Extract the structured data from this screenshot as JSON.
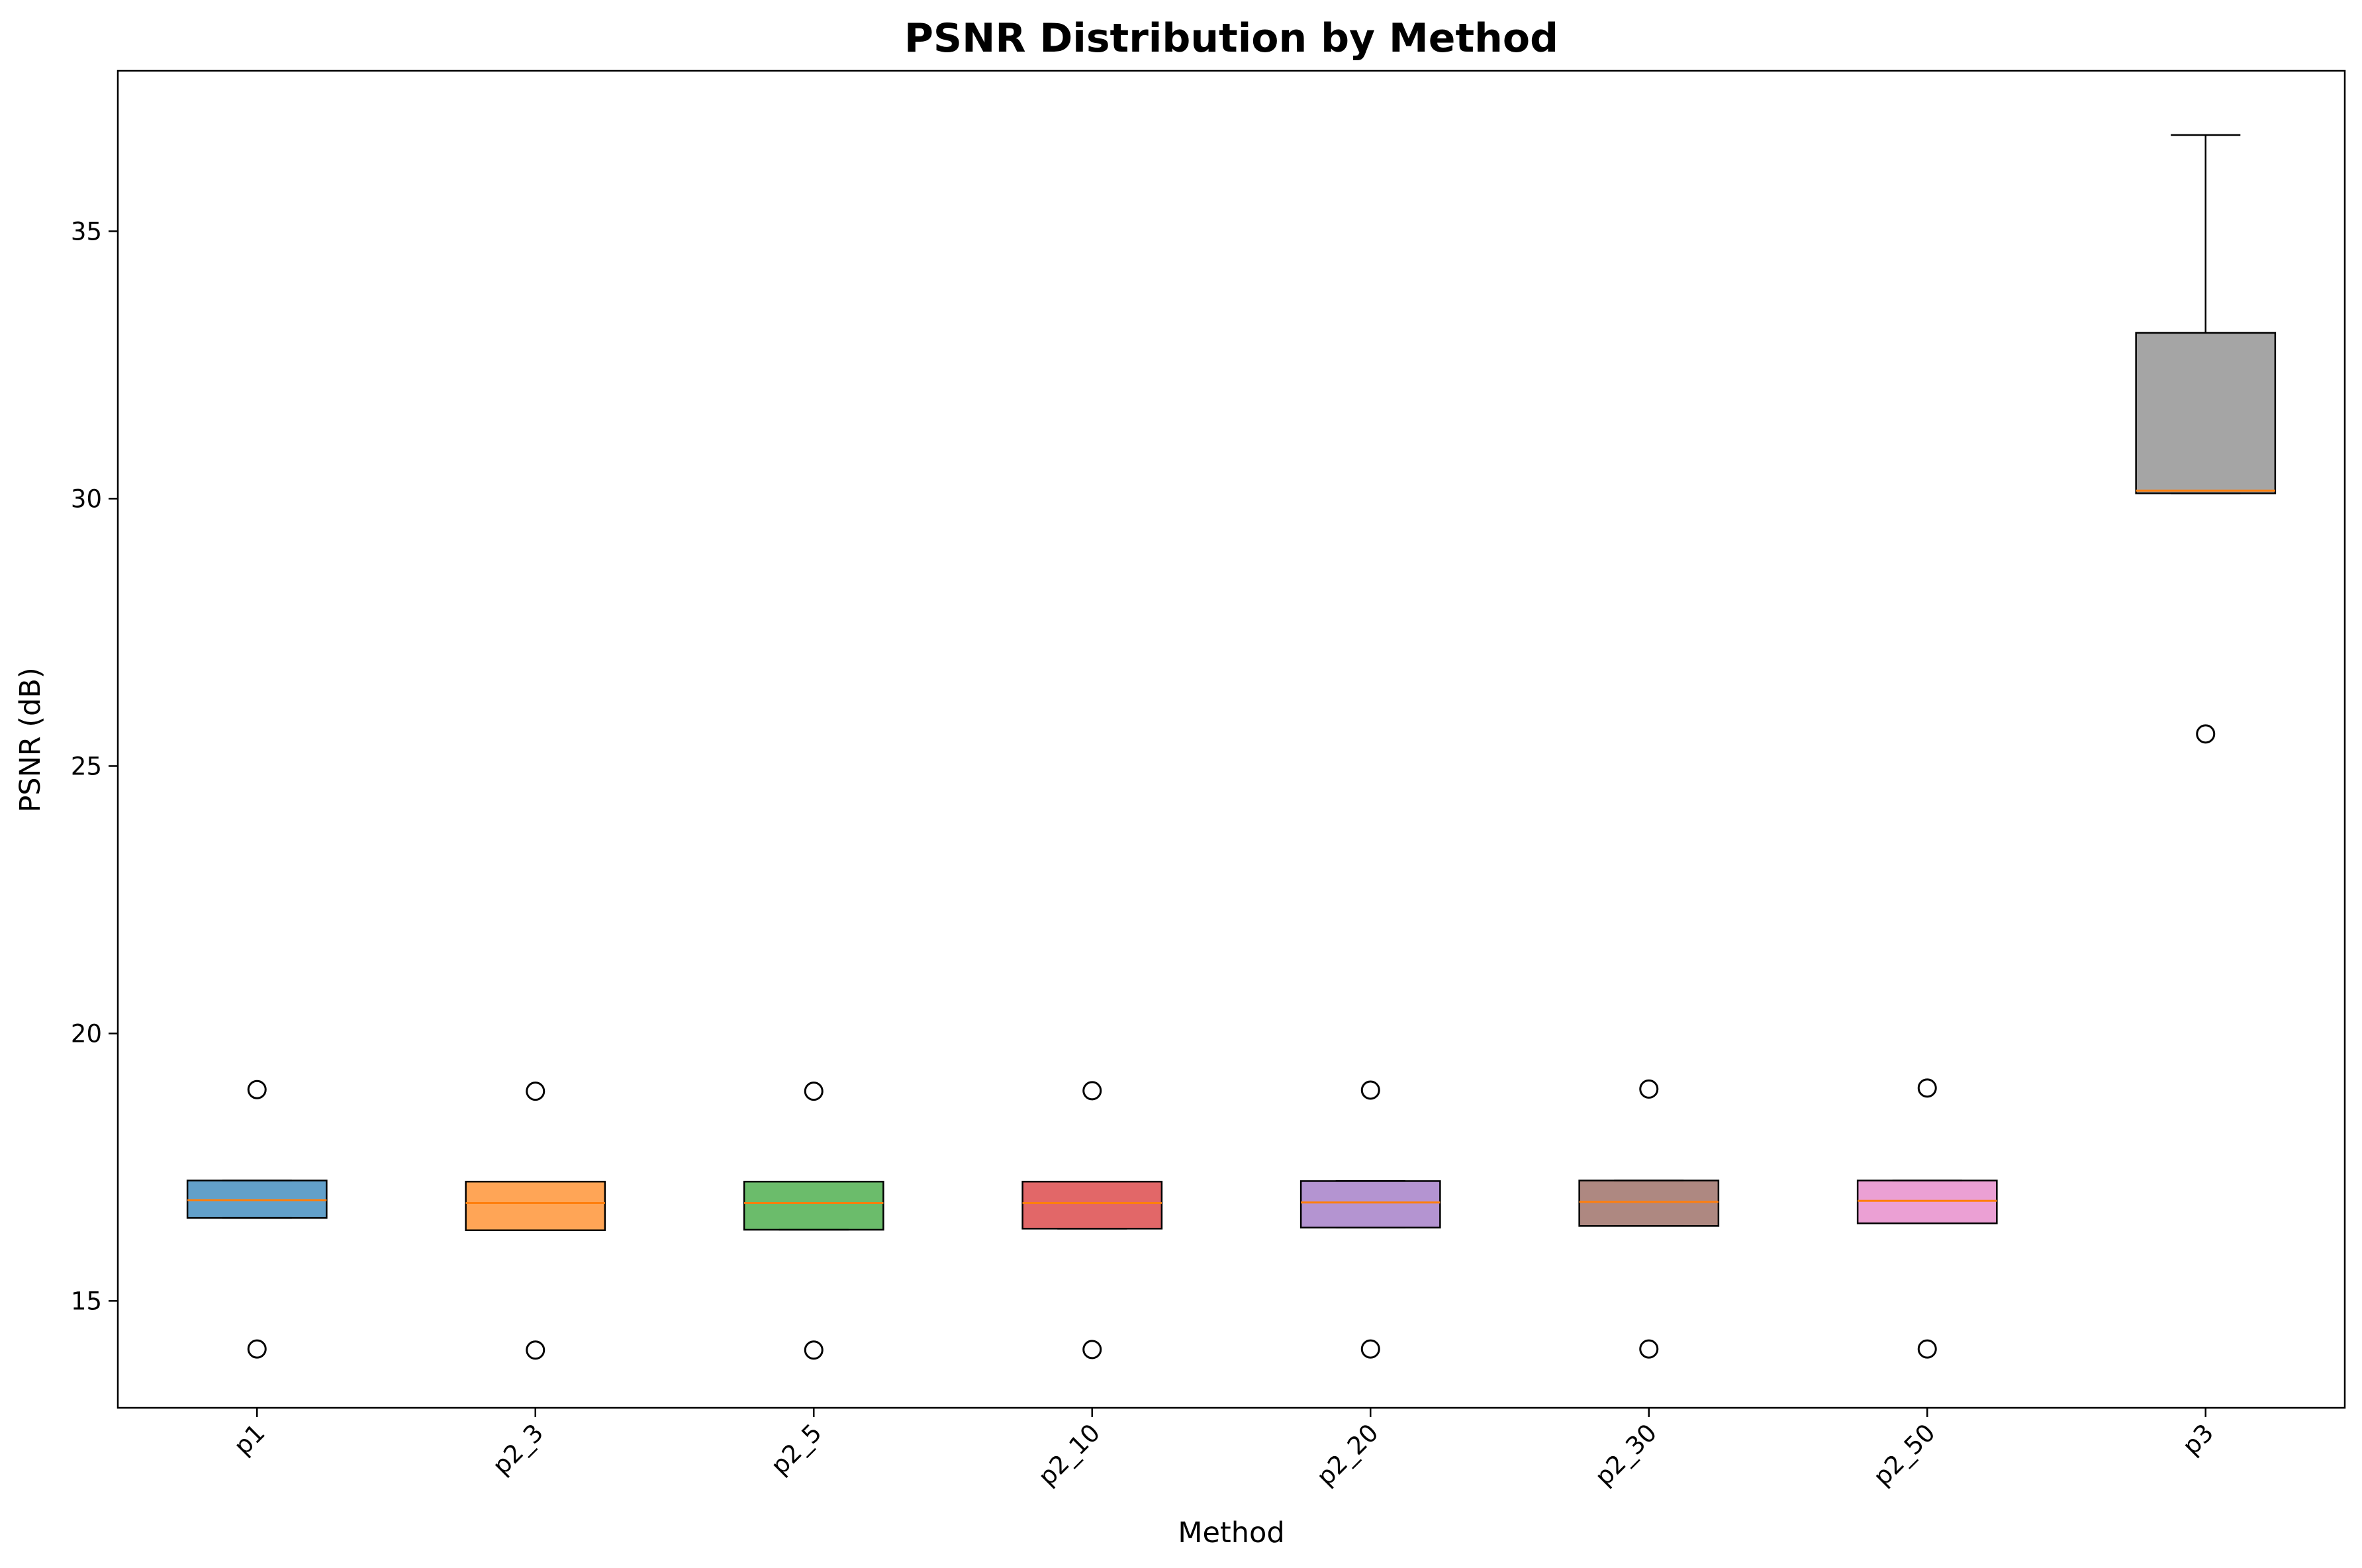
{
  "chart_data": {
    "type": "boxplot",
    "title": "PSNR Distribution by Method",
    "xlabel": "Method",
    "ylabel": "PSNR (dB)",
    "ylim": [
      13.0,
      38.0
    ],
    "yticks": [
      15,
      20,
      25,
      30,
      35
    ],
    "grid": false,
    "legend": "none",
    "categories": [
      "p1",
      "p2_3",
      "p2_5",
      "p2_10",
      "p2_20",
      "p2_30",
      "p2_50",
      "p3"
    ],
    "colors": [
      "#1f77b4",
      "#ff7f0e",
      "#2ca02c",
      "#d62728",
      "#9467bd",
      "#8c564b",
      "#e377c2",
      "#7f7f7f"
    ],
    "median_color": "#ff7f0e",
    "boxes": [
      {
        "category": "p1",
        "q1": 16.55,
        "median": 16.88,
        "q3": 17.25,
        "whisker_low": 16.55,
        "whisker_high": 17.25,
        "outliers": [
          18.95,
          14.1
        ]
      },
      {
        "category": "p2_3",
        "q1": 16.32,
        "median": 16.83,
        "q3": 17.23,
        "whisker_low": 16.32,
        "whisker_high": 17.23,
        "outliers": [
          18.92,
          14.08
        ]
      },
      {
        "category": "p2_5",
        "q1": 16.33,
        "median": 16.83,
        "q3": 17.23,
        "whisker_low": 16.33,
        "whisker_high": 17.23,
        "outliers": [
          18.92,
          14.08
        ]
      },
      {
        "category": "p2_10",
        "q1": 16.35,
        "median": 16.83,
        "q3": 17.23,
        "whisker_low": 16.35,
        "whisker_high": 17.23,
        "outliers": [
          18.93,
          14.09
        ]
      },
      {
        "category": "p2_20",
        "q1": 16.37,
        "median": 16.84,
        "q3": 17.24,
        "whisker_low": 16.37,
        "whisker_high": 17.24,
        "outliers": [
          18.94,
          14.1
        ]
      },
      {
        "category": "p2_30",
        "q1": 16.4,
        "median": 16.85,
        "q3": 17.25,
        "whisker_low": 16.4,
        "whisker_high": 17.25,
        "outliers": [
          18.96,
          14.1
        ]
      },
      {
        "category": "p2_50",
        "q1": 16.45,
        "median": 16.87,
        "q3": 17.25,
        "whisker_low": 16.45,
        "whisker_high": 17.25,
        "outliers": [
          18.98,
          14.1
        ]
      },
      {
        "category": "p3",
        "q1": 30.1,
        "median": 30.15,
        "q3": 33.1,
        "whisker_low": 30.1,
        "whisker_high": 36.8,
        "outliers": [
          25.6
        ]
      }
    ]
  }
}
